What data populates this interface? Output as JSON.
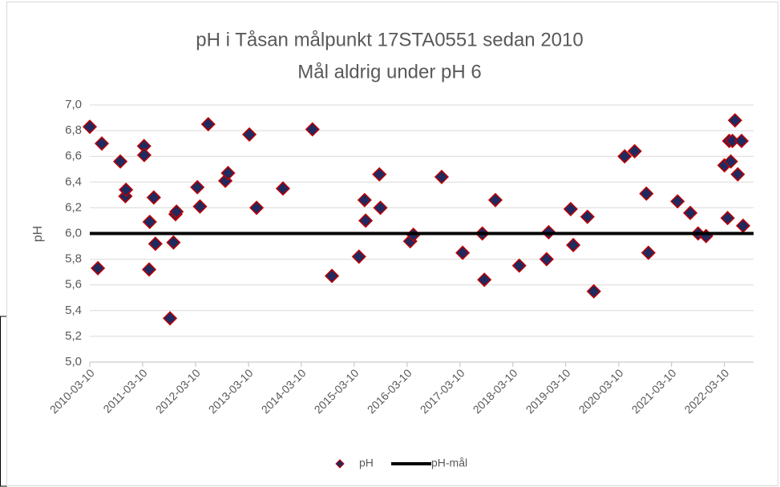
{
  "chart_data": {
    "type": "scatter",
    "title": "pH i Tåsan målpunkt 17STA0551 sedan 2010",
    "subtitle": "Mål aldrig under pH 6",
    "y_label": "pH",
    "xlim": [
      "2010-03-10",
      "2022-09-27"
    ],
    "xticks": [
      "2010-03-10",
      "2011-03-10",
      "2012-03-10",
      "2013-03-10",
      "2014-03-10",
      "2015-03-10",
      "2016-03-10",
      "2017-03-10",
      "2018-03-10",
      "2019-03-10",
      "2020-03-10",
      "2021-03-10",
      "2022-03-10"
    ],
    "ylim": [
      5.0,
      7.0
    ],
    "yticks": [
      {
        "value": 5.0,
        "label": "5,0"
      },
      {
        "value": 5.2,
        "label": "5,2"
      },
      {
        "value": 5.4,
        "label": "5,4"
      },
      {
        "value": 5.6,
        "label": "5,6"
      },
      {
        "value": 5.8,
        "label": "5,8"
      },
      {
        "value": 6.0,
        "label": "6,0"
      },
      {
        "value": 6.2,
        "label": "6,2"
      },
      {
        "value": 6.4,
        "label": "6,4"
      },
      {
        "value": 6.6,
        "label": "6,6"
      },
      {
        "value": 6.8,
        "label": "6,8"
      },
      {
        "value": 7.0,
        "label": "7,0"
      }
    ],
    "grid": true,
    "legend": "bottom",
    "series": [
      {
        "name": "pH",
        "color": "#1f2a60",
        "edge_color": "#c00000",
        "x": [
          "2010-03-10",
          "2010-05-05",
          "2010-06-01",
          "2010-10-07",
          "2010-11-11",
          "2010-11-15",
          "2011-03-20",
          "2011-03-21",
          "2011-04-24",
          "2011-04-28",
          "2011-05-26",
          "2011-06-06",
          "2011-09-15",
          "2011-10-09",
          "2011-10-23",
          "2011-10-30",
          "2012-03-22",
          "2012-04-09",
          "2012-06-05",
          "2012-10-01",
          "2012-10-20",
          "2013-03-16",
          "2013-05-05",
          "2013-11-03",
          "2014-05-26",
          "2014-10-07",
          "2015-04-12",
          "2015-05-21",
          "2015-05-28",
          "2015-08-31",
          "2015-09-07",
          "2016-03-31",
          "2016-04-22",
          "2016-11-03",
          "2017-03-28",
          "2017-08-11",
          "2017-08-25",
          "2017-11-09",
          "2018-04-23",
          "2018-10-29",
          "2018-11-12",
          "2019-04-13",
          "2019-05-01",
          "2019-08-07",
          "2019-09-20",
          "2020-04-20",
          "2020-06-28",
          "2020-09-17",
          "2020-10-01",
          "2021-04-20",
          "2021-07-17",
          "2021-09-09",
          "2021-11-03",
          "2022-03-10",
          "2022-04-01",
          "2022-04-12",
          "2022-04-23",
          "2022-05-04",
          "2022-05-22",
          "2022-06-10",
          "2022-07-06",
          "2022-07-17"
        ],
        "values": [
          6.83,
          5.73,
          6.7,
          6.56,
          6.29,
          6.34,
          6.68,
          6.61,
          5.72,
          6.09,
          6.28,
          5.92,
          5.34,
          5.93,
          6.15,
          6.17,
          6.36,
          6.21,
          6.85,
          6.41,
          6.47,
          6.77,
          6.2,
          6.35,
          6.81,
          5.67,
          5.82,
          6.26,
          6.1,
          6.46,
          6.2,
          5.94,
          5.99,
          6.44,
          5.85,
          6.0,
          5.64,
          6.26,
          5.75,
          5.8,
          6.01,
          6.19,
          5.91,
          6.13,
          5.55,
          6.6,
          6.64,
          6.31,
          5.85,
          6.25,
          6.16,
          6.0,
          5.98,
          6.53,
          6.12,
          6.72,
          6.56,
          6.72,
          6.88,
          6.46,
          6.72,
          6.06
        ]
      },
      {
        "name": "pH-mål",
        "color": "#000000",
        "line": true,
        "x": [
          "2010-03-10",
          "2022-09-27"
        ],
        "values": [
          6.0,
          6.0
        ]
      }
    ]
  }
}
